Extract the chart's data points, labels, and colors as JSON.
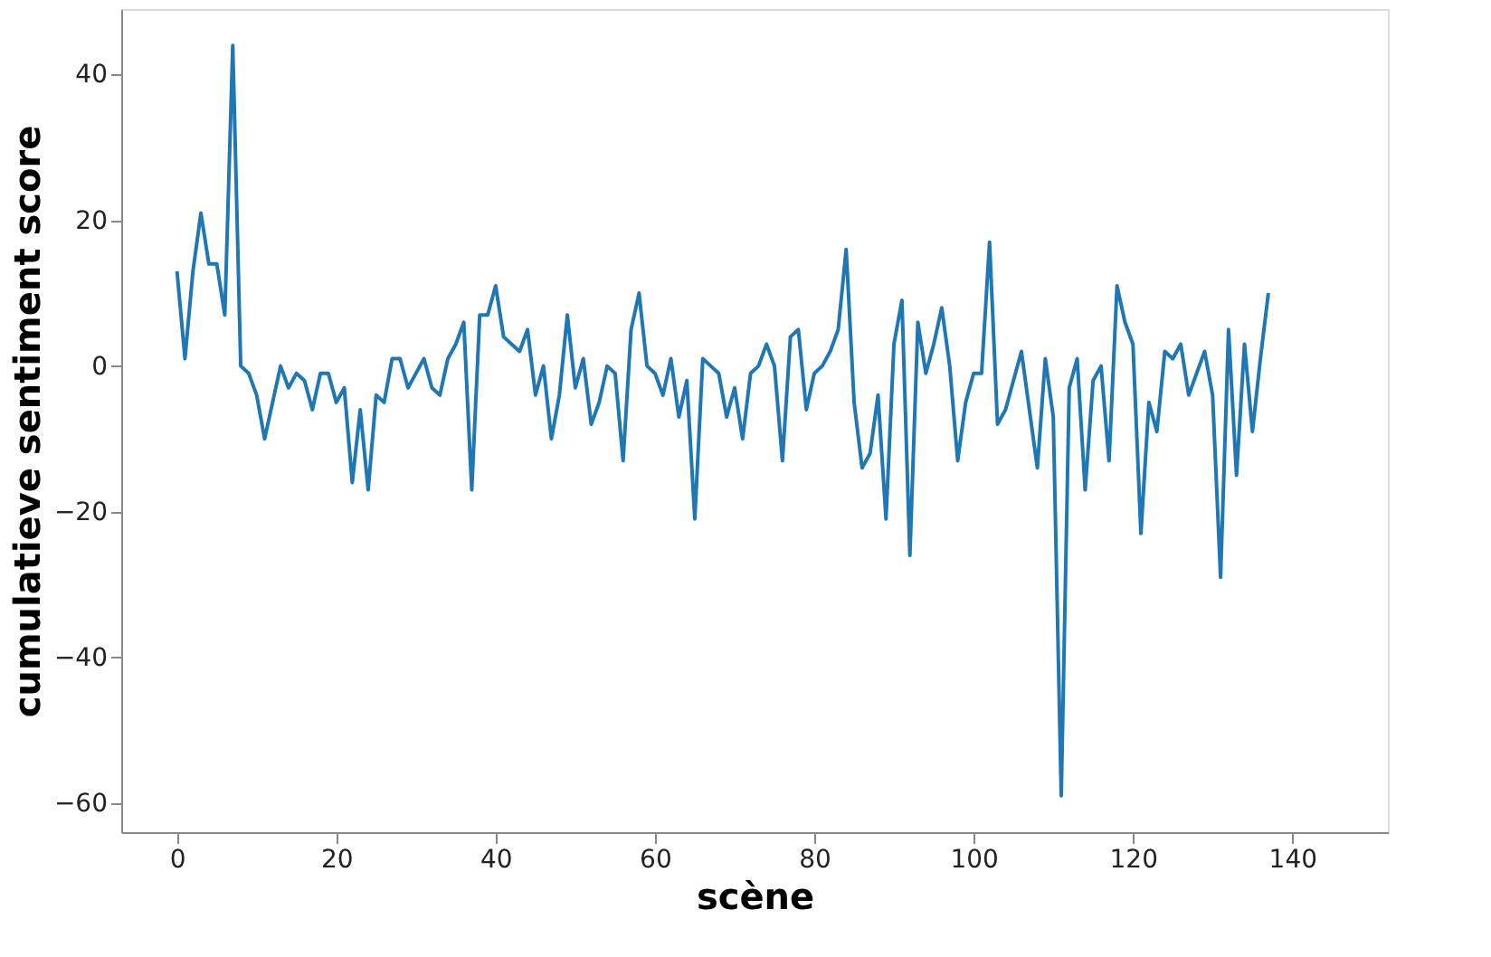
{
  "chart_data": {
    "type": "line",
    "xlabel": "scène",
    "ylabel": "cumulatieve sentiment score",
    "x": [
      0,
      1,
      2,
      3,
      4,
      5,
      6,
      7,
      8,
      9,
      10,
      11,
      12,
      13,
      14,
      15,
      16,
      17,
      18,
      19,
      20,
      21,
      22,
      23,
      24,
      25,
      26,
      27,
      28,
      29,
      30,
      31,
      32,
      33,
      34,
      35,
      36,
      37,
      38,
      39,
      40,
      41,
      42,
      43,
      44,
      45,
      46,
      47,
      48,
      49,
      50,
      51,
      52,
      53,
      54,
      55,
      56,
      57,
      58,
      59,
      60,
      61,
      62,
      63,
      64,
      65,
      66,
      67,
      68,
      69,
      70,
      71,
      72,
      73,
      74,
      75,
      76,
      77,
      78,
      79,
      80,
      81,
      82,
      83,
      84,
      85,
      86,
      87,
      88,
      89,
      90,
      91,
      92,
      93,
      94,
      95,
      96,
      97,
      98,
      99,
      100,
      101,
      102,
      103,
      104,
      105,
      106,
      107,
      108,
      109,
      110,
      111,
      112,
      113,
      114,
      115,
      116,
      117,
      118,
      119,
      120,
      121,
      122,
      123,
      124,
      125,
      126,
      127,
      128,
      129,
      130,
      131,
      132,
      133,
      134,
      135,
      136,
      137
    ],
    "series": [
      {
        "color": "#1f77b4",
        "values": [
          13,
          1,
          13,
          21,
          14,
          14,
          7,
          44,
          0,
          -1,
          -4,
          -10,
          -5,
          0,
          -3,
          -1,
          -2,
          -6,
          -1,
          -1,
          -5,
          -3,
          -16,
          -6,
          -17,
          -4,
          -5,
          1,
          1,
          -3,
          -1,
          1,
          -3,
          -4,
          1,
          3,
          6,
          -17,
          7,
          7,
          11,
          4,
          3,
          2,
          5,
          -4,
          0,
          -10,
          -4,
          7,
          -3,
          1,
          -8,
          -5,
          0,
          -1,
          -13,
          5,
          10,
          0,
          -1,
          -4,
          1,
          -7,
          -2,
          -21,
          1,
          0,
          -1,
          -7,
          -3,
          -10,
          -1,
          0,
          3,
          0,
          -13,
          4,
          5,
          -6,
          -1,
          0,
          2,
          5,
          16,
          -5,
          -14,
          -12,
          -4,
          -21,
          3,
          9,
          -26,
          6,
          -1,
          3,
          8,
          0,
          -13,
          -5,
          -1,
          -1,
          17,
          -8,
          -6,
          -2,
          2,
          -6,
          -14,
          1,
          -7,
          -59,
          -3,
          1,
          -17,
          -2,
          0,
          -13,
          11,
          6,
          3,
          -23,
          -5,
          -9,
          2,
          1,
          3,
          -4,
          -1,
          2,
          -4,
          -29,
          5,
          -15,
          3,
          -9,
          1,
          10
        ]
      }
    ],
    "xlim": [
      -7,
      152
    ],
    "ylim": [
      -64,
      49
    ],
    "xticks": [
      0,
      20,
      40,
      60,
      80,
      100,
      120,
      140
    ],
    "yticks": [
      -60,
      -40,
      -20,
      0,
      20,
      40
    ],
    "grid": false,
    "legend": false,
    "marker": "none",
    "line_style": "solid"
  }
}
